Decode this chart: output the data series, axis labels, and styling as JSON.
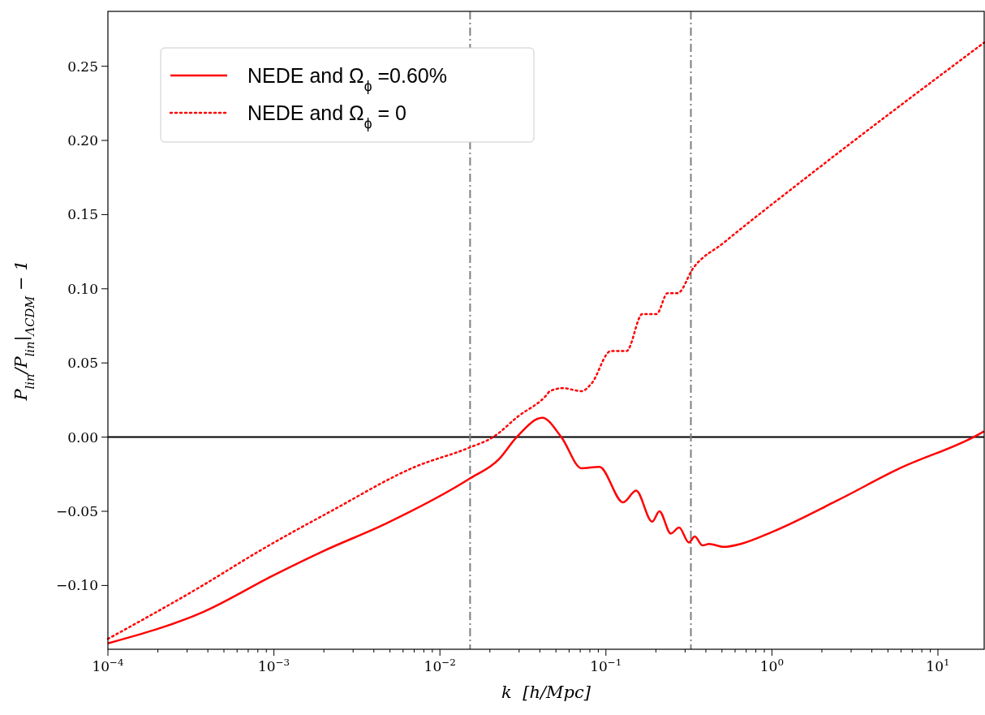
{
  "chart_data": {
    "type": "line",
    "xlabel": "k  [h/Mpc]",
    "ylabel": "P$_{lin}$/P$_{lin}$|$_{ΛCDM}$ − 1",
    "log": "x",
    "legend": "top left",
    "grid": false,
    "xlim": [
      0.0001,
      19
    ],
    "ylim": [
      -0.143,
      0.287
    ],
    "xticks": [
      {
        "value": 0.0001,
        "label": "10$^{−4}$"
      },
      {
        "value": 0.001,
        "label": "10$^{−3}$"
      },
      {
        "value": 0.01,
        "label": "10$^{−2}$"
      },
      {
        "value": 0.1,
        "label": "10$^{−1}$"
      },
      {
        "value": 1,
        "label": "10$^{0}$"
      },
      {
        "value": 10,
        "label": "10$^{1}$"
      },
      {
        "value": 0.0002,
        "label": null
      },
      {
        "value": 0.0003,
        "label": null
      },
      {
        "value": 0.0004,
        "label": null
      },
      {
        "value": 0.0005,
        "label": null
      },
      {
        "value": 0.0006,
        "label": null
      },
      {
        "value": 0.0007,
        "label": null
      },
      {
        "value": 0.0008,
        "label": null
      },
      {
        "value": 0.0009,
        "label": null
      },
      {
        "value": 0.002,
        "label": null
      },
      {
        "value": 0.003,
        "label": null
      },
      {
        "value": 0.004,
        "label": null
      },
      {
        "value": 0.005,
        "label": null
      },
      {
        "value": 0.006,
        "label": null
      },
      {
        "value": 0.007,
        "label": null
      },
      {
        "value": 0.008,
        "label": null
      },
      {
        "value": 0.009,
        "label": null
      },
      {
        "value": 0.02,
        "label": null
      },
      {
        "value": 0.03,
        "label": null
      },
      {
        "value": 0.04,
        "label": null
      },
      {
        "value": 0.05,
        "label": null
      },
      {
        "value": 0.06,
        "label": null
      },
      {
        "value": 0.07,
        "label": null
      },
      {
        "value": 0.08,
        "label": null
      },
      {
        "value": 0.09,
        "label": null
      },
      {
        "value": 0.2,
        "label": null
      },
      {
        "value": 0.3,
        "label": null
      },
      {
        "value": 0.4,
        "label": null
      },
      {
        "value": 0.5,
        "label": null
      },
      {
        "value": 0.6,
        "label": null
      },
      {
        "value": 0.7,
        "label": null
      },
      {
        "value": 0.8,
        "label": null
      },
      {
        "value": 0.9,
        "label": null
      },
      {
        "value": 2,
        "label": null
      },
      {
        "value": 3,
        "label": null
      },
      {
        "value": 4,
        "label": null
      },
      {
        "value": 5,
        "label": null
      },
      {
        "value": 6,
        "label": null
      },
      {
        "value": 7,
        "label": null
      },
      {
        "value": 8,
        "label": null
      },
      {
        "value": 9,
        "label": null
      }
    ],
    "yticks": [
      {
        "value": -0.1,
        "label": "−0.10"
      },
      {
        "value": -0.05,
        "label": "−0.05"
      },
      {
        "value": 0,
        "label": "0.00"
      },
      {
        "value": 0.05,
        "label": "0.05"
      },
      {
        "value": 0.1,
        "label": "0.10"
      },
      {
        "value": 0.15,
        "label": "0.15"
      },
      {
        "value": 0.2,
        "label": "0.20"
      },
      {
        "value": 0.25,
        "label": "0.25"
      }
    ],
    "ref_lines": [
      {
        "axis": "y",
        "value": 0,
        "color": "#000000",
        "line_style": "solid"
      },
      {
        "axis": "x",
        "value": 0.0152,
        "color": "#808080",
        "line_style": "dashed"
      },
      {
        "axis": "x",
        "value": 0.325,
        "color": "#808080",
        "line_style": "dashed"
      }
    ],
    "series": [
      {
        "name": "NEDE and Ω$_{ϕ}$ =0.60%",
        "color": "#ff0000",
        "line_style": "solid",
        "x": [
          0.0001,
          0.000372,
          0.001,
          0.00197,
          0.00479,
          0.0151,
          0.0226,
          0.029,
          0.0414,
          0.0539,
          0.0714,
          0.0914,
          0.127,
          0.152,
          0.19,
          0.21,
          0.246,
          0.276,
          0.316,
          0.343,
          0.382,
          0.418,
          0.512,
          0.648,
          1.0,
          2.45,
          5.9,
          17,
          19
        ],
        "values": [
          -0.139,
          -0.118,
          -0.093,
          -0.077,
          -0.058,
          -0.028,
          -0.015,
          0,
          0.013,
          0,
          -0.021,
          -0.02,
          -0.044,
          -0.036,
          -0.057,
          -0.05,
          -0.065,
          -0.061,
          -0.071,
          -0.067,
          -0.073,
          -0.072,
          -0.074,
          -0.072,
          -0.064,
          -0.043,
          -0.021,
          0.001,
          0.004
        ]
      },
      {
        "name": "NEDE and Ω$_{ϕ}$ = 0",
        "color": "#ff0000",
        "line_style": "dotted",
        "x": [
          0.0001,
          0.000372,
          0.00081,
          0.0022,
          0.0071,
          0.0151,
          0.0209,
          0.0296,
          0.0436,
          0.046,
          0.0551,
          0.0714,
          0.0817,
          0.107,
          0.133,
          0.166,
          0.202,
          0.235,
          0.27,
          0.336,
          0.512,
          1.7,
          19
        ],
        "values": [
          -0.136,
          -0.1,
          -0.077,
          -0.05,
          -0.02,
          -0.007,
          0,
          0.014,
          0.028,
          0.031,
          0.033,
          0.031,
          0.036,
          0.058,
          0.058,
          0.083,
          0.083,
          0.097,
          0.097,
          0.114,
          0.131,
          0.177,
          0.266
        ]
      }
    ]
  }
}
